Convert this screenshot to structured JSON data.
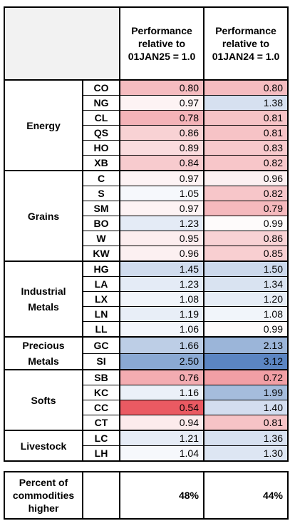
{
  "header": {
    "col1": [
      "Performance",
      "relative to",
      "01JAN25 = 1.0"
    ],
    "col2": [
      "Performance",
      "relative to",
      "01JAN24 = 1.0"
    ]
  },
  "groups": [
    {
      "name": [
        "Energy"
      ],
      "rows": [
        {
          "ticker": "CO",
          "v1": "0.80",
          "v2": "0.80",
          "c1": "#f5bcc0",
          "c2": "#f5bcc0"
        },
        {
          "ticker": "NG",
          "v1": "0.97",
          "v2": "1.38",
          "c1": "#fdf3f4",
          "c2": "#d6e0f0"
        },
        {
          "ticker": "CL",
          "v1": "0.78",
          "v2": "0.81",
          "c1": "#f4b3b8",
          "c2": "#f6c3c6"
        },
        {
          "ticker": "QS",
          "v1": "0.86",
          "v2": "0.81",
          "c1": "#f8d2d4",
          "c2": "#f6c3c6"
        },
        {
          "ticker": "HO",
          "v1": "0.89",
          "v2": "0.83",
          "c1": "#fadcde",
          "c2": "#f7c9cc"
        },
        {
          "ticker": "XB",
          "v1": "0.84",
          "v2": "0.82",
          "c1": "#f7cbce",
          "c2": "#f7c6c9"
        }
      ]
    },
    {
      "name": [
        "Grains"
      ],
      "rows": [
        {
          "ticker": "C",
          "v1": "0.97",
          "v2": "0.96",
          "c1": "#fdf3f4",
          "c2": "#fcf0f1"
        },
        {
          "ticker": "S",
          "v1": "1.05",
          "v2": "0.82",
          "c1": "#f6f8fc",
          "c2": "#f7c6c9"
        },
        {
          "ticker": "SM",
          "v1": "0.97",
          "v2": "0.79",
          "c1": "#fdf3f4",
          "c2": "#f5b9bd"
        },
        {
          "ticker": "BO",
          "v1": "1.23",
          "v2": "0.99",
          "c1": "#e4ebf6",
          "c2": "#fefbfb"
        },
        {
          "ticker": "W",
          "v1": "0.95",
          "v2": "0.86",
          "c1": "#fcedee",
          "c2": "#f8d2d4"
        },
        {
          "ticker": "KW",
          "v1": "0.96",
          "v2": "0.85",
          "c1": "#fcf0f1",
          "c2": "#f8cfd1"
        }
      ]
    },
    {
      "name": [
        "Industrial",
        "Metals"
      ],
      "rows": [
        {
          "ticker": "HG",
          "v1": "1.45",
          "v2": "1.50",
          "c1": "#d0dcee",
          "c2": "#ccd9ec"
        },
        {
          "ticker": "LA",
          "v1": "1.23",
          "v2": "1.34",
          "c1": "#e4ebf6",
          "c2": "#d9e3f1"
        },
        {
          "ticker": "LX",
          "v1": "1.08",
          "v2": "1.20",
          "c1": "#f1f5fa",
          "c2": "#e6edf6"
        },
        {
          "ticker": "LN",
          "v1": "1.19",
          "v2": "1.08",
          "c1": "#e8eef7",
          "c2": "#f1f5fa"
        },
        {
          "ticker": "LL",
          "v1": "1.06",
          "v2": "0.99",
          "c1": "#f3f6fb",
          "c2": "#fefbfb"
        }
      ]
    },
    {
      "name": [
        "Precious",
        "Metals"
      ],
      "rows": [
        {
          "ticker": "GC",
          "v1": "1.66",
          "v2": "2.13",
          "c1": "#bdcee6",
          "c2": "#9bb5d9"
        },
        {
          "ticker": "SI",
          "v1": "2.50",
          "v2": "3.12",
          "c1": "#8aa9d3",
          "c2": "#5b85c2"
        }
      ]
    },
    {
      "name": [
        "Softs"
      ],
      "rows": [
        {
          "ticker": "SB",
          "v1": "0.76",
          "v2": "0.72",
          "c1": "#f3acb1",
          "c2": "#f19fa5"
        },
        {
          "ticker": "KC",
          "v1": "1.16",
          "v2": "1.99",
          "c1": "#ebf0f8",
          "c2": "#a5bcdc"
        },
        {
          "ticker": "CC",
          "v1": "0.54",
          "v2": "1.40",
          "c1": "#ea5a62",
          "c2": "#d3ddef"
        },
        {
          "ticker": "CT",
          "v1": "0.94",
          "v2": "0.81",
          "c1": "#fcebec",
          "c2": "#f6c3c6"
        }
      ]
    },
    {
      "name": [
        "Livestock"
      ],
      "rows": [
        {
          "ticker": "LC",
          "v1": "1.21",
          "v2": "1.36",
          "c1": "#e6ecf6",
          "c2": "#d7e1f0"
        },
        {
          "ticker": "LH",
          "v1": "1.04",
          "v2": "1.30",
          "c1": "#f6f8fc",
          "c2": "#dde6f3"
        }
      ]
    }
  ],
  "summary": {
    "label": [
      "Percent of",
      "commodities",
      "higher"
    ],
    "v1": "48%",
    "v2": "44%"
  }
}
